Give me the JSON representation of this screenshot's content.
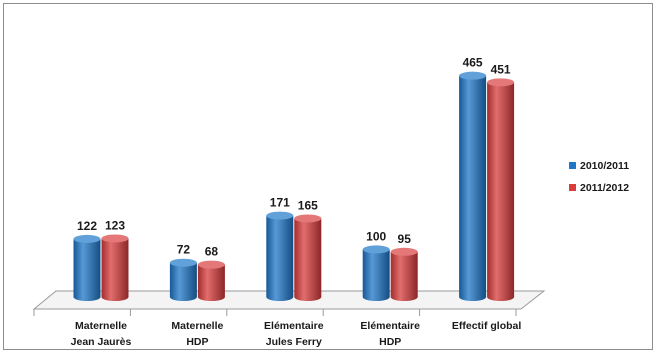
{
  "chart_data": {
    "type": "bar",
    "title": "",
    "xlabel": "",
    "ylabel": "",
    "categories": [
      [
        "Maternelle",
        "Jean Jaurès"
      ],
      [
        "Maternelle",
        "HDP"
      ],
      [
        "Elémentaire",
        "Jules Ferry"
      ],
      [
        "Elémentaire",
        "HDP"
      ],
      [
        "Effectif global"
      ]
    ],
    "series": [
      {
        "name": "2010/2011",
        "values": [
          122,
          72,
          171,
          100,
          465
        ],
        "color": "#1f77c8"
      },
      {
        "name": "2011/2012",
        "values": [
          123,
          68,
          165,
          95,
          451
        ],
        "color": "#d83c3c"
      }
    ],
    "ylim": [
      0,
      500
    ],
    "grid": false,
    "legend_position": "right",
    "bar_style": "3d-cylinder",
    "data_labels": true
  }
}
